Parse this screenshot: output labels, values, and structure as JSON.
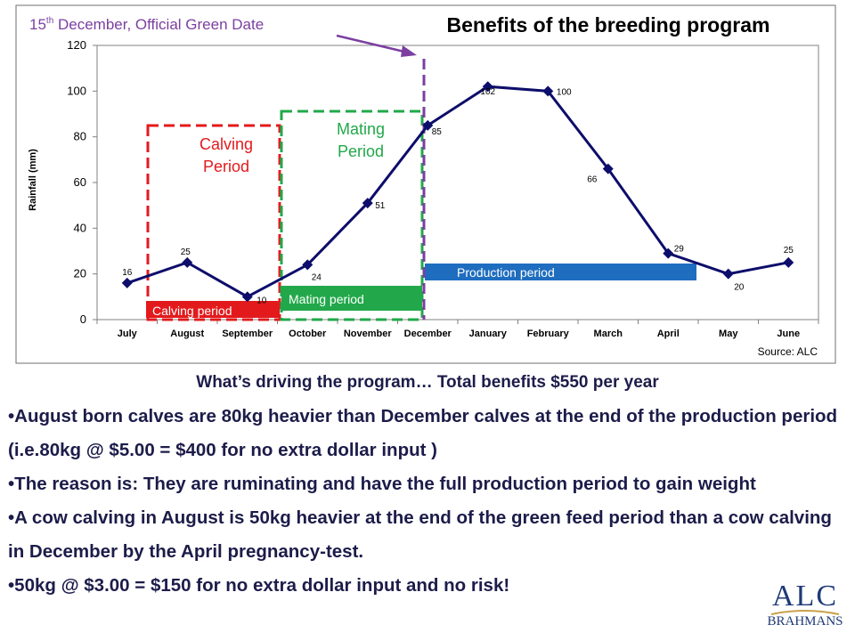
{
  "slide": {
    "official_date_prefix": "15",
    "official_date_sup": "th",
    "official_date_suffix": " December,  Official Green Date",
    "title": "Benefits of the breeding program",
    "subhead": "What’s driving the program… Total benefits $550 per year",
    "bullets": [
      "•August born calves are 80kg heavier than December calves at the end of the production period  (i.e.80kg @ $5.00 = $400 for no extra dollar input )",
      "•The reason is: They are ruminating and have the full production period to gain weight",
      "•A cow calving in August is 50kg heavier at the end of the green feed period than a cow calving in December by the April pregnancy-test.",
      "•50kg @ $3.00 = $150 for no extra dollar input and no risk!"
    ],
    "logo_main": "ALC",
    "logo_sub": "BRAHMANS"
  },
  "chart_data": {
    "type": "line",
    "ylabel": "Rainfall (mm)",
    "xlabel": "",
    "source": "Source: ALC",
    "ylim": [
      0,
      120
    ],
    "yticks": [
      0,
      20,
      40,
      60,
      80,
      100,
      120
    ],
    "categories": [
      "July",
      "August",
      "September",
      "October",
      "November",
      "December",
      "January",
      "February",
      "March",
      "April",
      "May",
      "June"
    ],
    "values": [
      16,
      25,
      10,
      24,
      51,
      85,
      102,
      100,
      66,
      29,
      20,
      25
    ],
    "data_labels": [
      "16",
      "25",
      "10",
      "24",
      "51",
      "85",
      "102",
      "100",
      "66",
      "29",
      "20",
      "25"
    ],
    "line_color": "#0d0d6b",
    "annotations": {
      "calving_box_label": "Calving Period",
      "mating_box_label": "Mating Period",
      "calving_bar_label": "Calving period",
      "mating_bar_label": "Mating period",
      "production_bar_label": "Production period"
    },
    "colors": {
      "calving": "#e31a1c",
      "mating": "#22a84a",
      "production": "#1f6dbf",
      "marker_line": "#7b3fa0"
    }
  }
}
